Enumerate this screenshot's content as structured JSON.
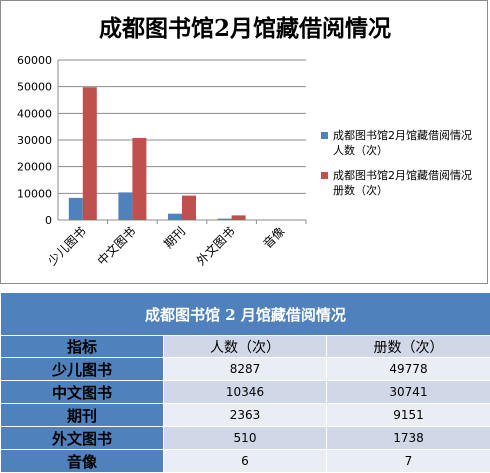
{
  "chart_data": {
    "type": "bar",
    "title": "成都图书馆2月馆藏借阅情况",
    "categories": [
      "少儿图书",
      "中文图书",
      "期刊",
      "外文图书",
      "音像"
    ],
    "series": [
      {
        "name": "成都图书馆2月馆藏借阅情况 人数（次）",
        "color": "#4f81bd",
        "values": [
          8287,
          10346,
          2363,
          510,
          6
        ]
      },
      {
        "name": "成都图书馆2月馆藏借阅情况 册数（次）",
        "color": "#c0504d",
        "values": [
          49778,
          30741,
          9151,
          1738,
          7
        ]
      }
    ],
    "ylim": [
      0,
      60000
    ],
    "yticks": [
      0,
      10000,
      20000,
      30000,
      40000,
      50000,
      60000
    ],
    "grid": true,
    "legend": "right",
    "xlabel": "",
    "ylabel": ""
  },
  "legend": {
    "items": [
      {
        "label": "成都图书馆2月馆藏借阅情况 人数（次）"
      },
      {
        "label": "成都图书馆2月馆藏借阅情况 册数（次）"
      }
    ]
  },
  "table": {
    "title": "成都图书馆 2 月馆藏借阅情况",
    "header": {
      "label": "指标",
      "col1": "人数（次）",
      "col2": "册数（次）"
    },
    "rows": [
      {
        "label": "少儿图书",
        "people": "8287",
        "volumes": "49778"
      },
      {
        "label": "中文图书",
        "people": "10346",
        "volumes": "30741"
      },
      {
        "label": "期刊",
        "people": "2363",
        "volumes": "9151"
      },
      {
        "label": "外文图书",
        "people": "510",
        "volumes": "1738"
      },
      {
        "label": "音像",
        "people": "6",
        "volumes": "7"
      }
    ]
  }
}
